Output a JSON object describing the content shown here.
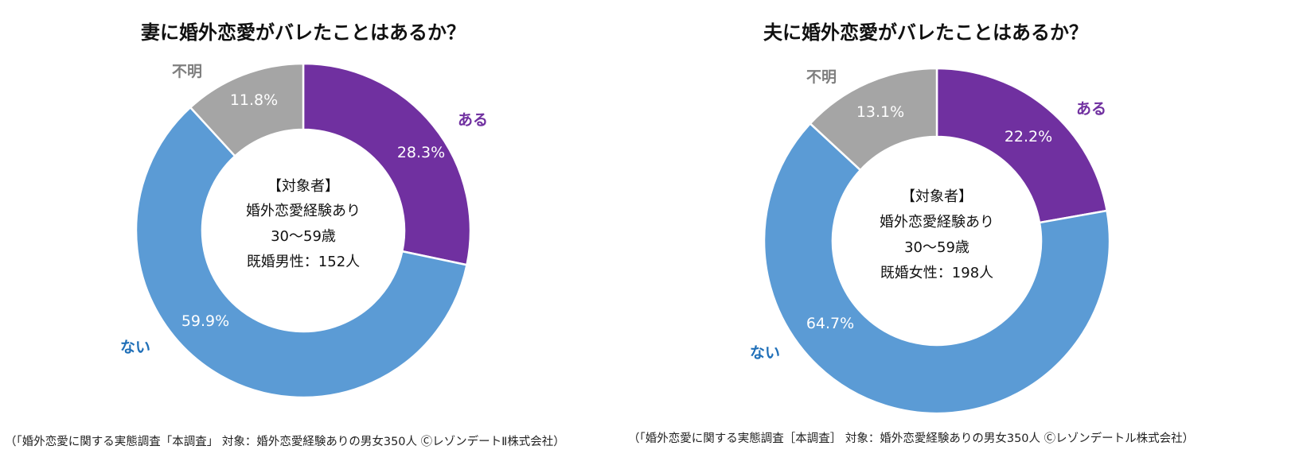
{
  "chart_data": [
    {
      "type": "pie",
      "variant": "donut",
      "title": "妻に婚外恋愛がバレたことはあるか？",
      "categories": [
        "ある",
        "ない",
        "不明"
      ],
      "values": [
        28.3,
        59.9,
        11.8
      ],
      "value_labels": [
        "28.3%",
        "59.9%",
        "11.8%"
      ],
      "colors": [
        "#7030a0",
        "#5b9bd5",
        "#a5a5a5"
      ],
      "category_label_colors": [
        "#7030a0",
        "#1f6fb8",
        "#7f7f7f"
      ],
      "center_text": [
        "【対象者】",
        "婚外恋愛経験あり",
        "30〜59歳",
        "既婚男性：152人"
      ],
      "source": "（「婚外恋愛に関する実態調査「本調査」 対象：婚外恋愛経験ありの男女350人 ⒸレゾンデートⅡ株式会社）"
    },
    {
      "type": "pie",
      "variant": "donut",
      "title": "夫に婚外恋愛がバレたことはあるか？",
      "categories": [
        "ある",
        "ない",
        "不明"
      ],
      "values": [
        22.2,
        64.7,
        13.1
      ],
      "value_labels": [
        "22.2%",
        "64.7%",
        "13.1%"
      ],
      "colors": [
        "#7030a0",
        "#5b9bd5",
        "#a5a5a5"
      ],
      "category_label_colors": [
        "#7030a0",
        "#1f6fb8",
        "#7f7f7f"
      ],
      "center_text": [
        "【対象者】",
        "婚外恋愛経験あり",
        "30〜59歳",
        "既婚女性：198人"
      ],
      "source": "（「婚外恋愛に関する実態調査［本調査］ 対象：婚外恋愛経験ありの男女350人 Ⓒレゾンデートル株式会社）"
    }
  ]
}
